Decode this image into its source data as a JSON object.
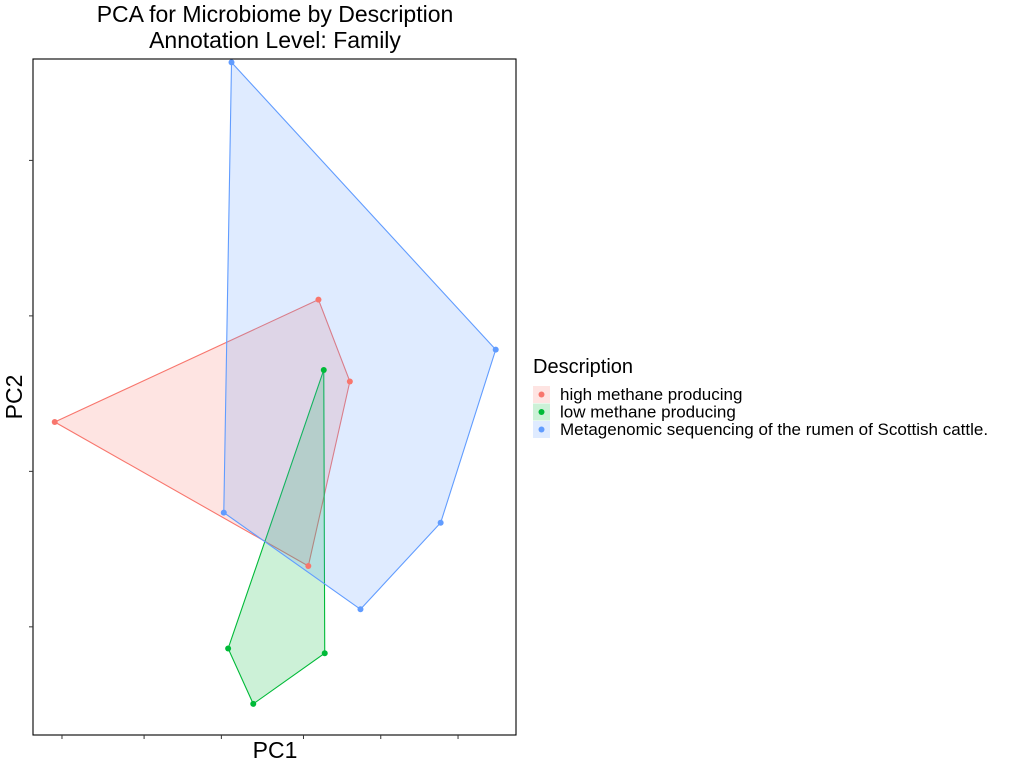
{
  "chart_data": {
    "type": "scatter",
    "title": "PCA for Microbiome by Description",
    "subtitle": "Annotation Level: Family",
    "xlabel": "PC1",
    "ylabel": "PC2",
    "xlim": [
      0,
      100
    ],
    "ylim": [
      0,
      100
    ],
    "grid": false,
    "x_ticks": [
      6,
      23,
      39,
      56,
      72,
      88
    ],
    "y_ticks": [
      16,
      39,
      62,
      85
    ],
    "legend": {
      "title": "Description",
      "position": "right"
    },
    "series": [
      {
        "name": "high methane producing",
        "color": "#F8766D",
        "points": [
          [
            4.5,
            46.3
          ],
          [
            59.1,
            64.4
          ],
          [
            65.6,
            52.3
          ],
          [
            57.0,
            25.0
          ]
        ]
      },
      {
        "name": "low methane producing",
        "color": "#00BA38",
        "points": [
          [
            60.2,
            54.0
          ],
          [
            60.4,
            12.1
          ],
          [
            45.6,
            4.6
          ],
          [
            40.4,
            12.8
          ]
        ]
      },
      {
        "name": "Metagenomic sequencing of the rumen of Scottish cattle.",
        "color": "#619CFF",
        "points": [
          [
            41.1,
            99.5
          ],
          [
            95.8,
            57.0
          ],
          [
            84.4,
            31.4
          ],
          [
            67.8,
            18.6
          ],
          [
            39.5,
            32.9
          ]
        ]
      }
    ]
  }
}
